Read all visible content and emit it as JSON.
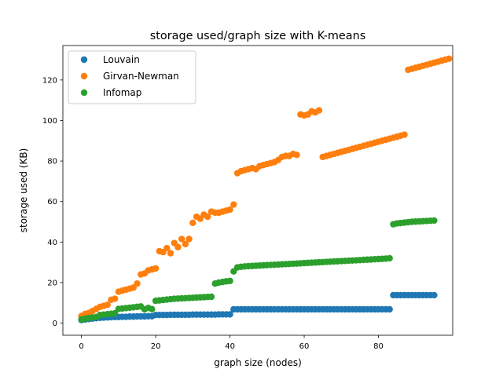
{
  "chart_data": {
    "type": "scatter",
    "title": "storage used/graph size with K-means",
    "xlabel": "graph size (nodes)",
    "ylabel": "storage used (KB)",
    "xlim": [
      -5,
      100
    ],
    "ylim": [
      -6,
      137
    ],
    "xticks": [
      0,
      20,
      40,
      60,
      80
    ],
    "yticks": [
      0,
      20,
      40,
      60,
      80,
      100,
      120
    ],
    "legend_position": "top-left",
    "series": [
      {
        "name": "Louvain",
        "color": "#1f77b4",
        "points": [
          [
            0,
            1.5
          ],
          [
            1,
            1.8
          ],
          [
            2,
            2.0
          ],
          [
            3,
            2.2
          ],
          [
            4,
            2.4
          ],
          [
            5,
            2.6
          ],
          [
            6,
            2.7
          ],
          [
            7,
            2.8
          ],
          [
            8,
            2.9
          ],
          [
            9,
            3.0
          ],
          [
            10,
            3.0
          ],
          [
            11,
            3.1
          ],
          [
            12,
            3.1
          ],
          [
            13,
            3.2
          ],
          [
            14,
            3.2
          ],
          [
            15,
            3.3
          ],
          [
            16,
            3.3
          ],
          [
            17,
            3.3
          ],
          [
            18,
            3.4
          ],
          [
            19,
            3.4
          ],
          [
            20,
            4.0
          ],
          [
            21,
            4.0
          ],
          [
            22,
            4.0
          ],
          [
            23,
            4.0
          ],
          [
            24,
            4.1
          ],
          [
            25,
            4.1
          ],
          [
            26,
            4.1
          ],
          [
            27,
            4.1
          ],
          [
            28,
            4.1
          ],
          [
            29,
            4.1
          ],
          [
            30,
            4.2
          ],
          [
            31,
            4.2
          ],
          [
            32,
            4.2
          ],
          [
            33,
            4.2
          ],
          [
            34,
            4.2
          ],
          [
            35,
            4.2
          ],
          [
            36,
            4.2
          ],
          [
            37,
            4.3
          ],
          [
            38,
            4.3
          ],
          [
            39,
            4.3
          ],
          [
            40,
            4.3
          ],
          [
            41,
            6.8
          ],
          [
            42,
            6.8
          ],
          [
            43,
            6.8
          ],
          [
            44,
            6.8
          ],
          [
            45,
            6.8
          ],
          [
            46,
            6.8
          ],
          [
            47,
            6.8
          ],
          [
            48,
            6.8
          ],
          [
            49,
            6.8
          ],
          [
            50,
            6.8
          ],
          [
            51,
            6.8
          ],
          [
            52,
            6.8
          ],
          [
            53,
            6.8
          ],
          [
            54,
            6.8
          ],
          [
            55,
            6.8
          ],
          [
            56,
            6.8
          ],
          [
            57,
            6.8
          ],
          [
            58,
            6.8
          ],
          [
            59,
            6.8
          ],
          [
            60,
            6.8
          ],
          [
            61,
            6.8
          ],
          [
            62,
            6.8
          ],
          [
            63,
            6.8
          ],
          [
            64,
            6.8
          ],
          [
            65,
            6.8
          ],
          [
            66,
            6.8
          ],
          [
            67,
            6.8
          ],
          [
            68,
            6.8
          ],
          [
            69,
            6.8
          ],
          [
            70,
            6.8
          ],
          [
            71,
            6.8
          ],
          [
            72,
            6.8
          ],
          [
            73,
            6.8
          ],
          [
            74,
            6.8
          ],
          [
            75,
            6.8
          ],
          [
            76,
            6.8
          ],
          [
            77,
            6.8
          ],
          [
            78,
            6.8
          ],
          [
            79,
            6.8
          ],
          [
            80,
            6.8
          ],
          [
            81,
            6.8
          ],
          [
            82,
            6.8
          ],
          [
            83,
            6.8
          ],
          [
            84,
            13.8
          ],
          [
            85,
            13.8
          ],
          [
            86,
            13.8
          ],
          [
            87,
            13.8
          ],
          [
            88,
            13.8
          ],
          [
            89,
            13.8
          ],
          [
            90,
            13.8
          ],
          [
            91,
            13.8
          ],
          [
            92,
            13.8
          ],
          [
            93,
            13.8
          ],
          [
            94,
            13.8
          ],
          [
            95,
            13.8
          ]
        ]
      },
      {
        "name": "Girvan-Newman",
        "color": "#ff7f0e",
        "points": [
          [
            0,
            3.5
          ],
          [
            1,
            4.5
          ],
          [
            2,
            5
          ],
          [
            3,
            6
          ],
          [
            4,
            7
          ],
          [
            5,
            8
          ],
          [
            6,
            8.5
          ],
          [
            7,
            9
          ],
          [
            8,
            11.5
          ],
          [
            9,
            12
          ],
          [
            10,
            15.5
          ],
          [
            11,
            16
          ],
          [
            12,
            16.5
          ],
          [
            13,
            17
          ],
          [
            14,
            17.5
          ],
          [
            15,
            19.5
          ],
          [
            16,
            24
          ],
          [
            17,
            24.5
          ],
          [
            18,
            26
          ],
          [
            19,
            26.5
          ],
          [
            20,
            27
          ],
          [
            21,
            35.5
          ],
          [
            22,
            35
          ],
          [
            23,
            37
          ],
          [
            24,
            34.5
          ],
          [
            25,
            39.5
          ],
          [
            26,
            37.5
          ],
          [
            27,
            41.5
          ],
          [
            28,
            39
          ],
          [
            29,
            41.5
          ],
          [
            30,
            49.5
          ],
          [
            31,
            52.5
          ],
          [
            32,
            51.5
          ],
          [
            33,
            53.5
          ],
          [
            34,
            52.5
          ],
          [
            35,
            55
          ],
          [
            36,
            54.5
          ],
          [
            37,
            54.5
          ],
          [
            38,
            55
          ],
          [
            39,
            55.5
          ],
          [
            40,
            56
          ],
          [
            41,
            58.5
          ],
          [
            42,
            74
          ],
          [
            43,
            75
          ],
          [
            44,
            75.5
          ],
          [
            45,
            76
          ],
          [
            46,
            76.5
          ],
          [
            47,
            76
          ],
          [
            48,
            77.5
          ],
          [
            49,
            78
          ],
          [
            50,
            78.5
          ],
          [
            51,
            79
          ],
          [
            52,
            79.5
          ],
          [
            53,
            80.5
          ],
          [
            54,
            82
          ],
          [
            55,
            82.5
          ],
          [
            56,
            82.5
          ],
          [
            57,
            83.5
          ],
          [
            58,
            83
          ],
          [
            59,
            103
          ],
          [
            60,
            102.5
          ],
          [
            61,
            103
          ],
          [
            62,
            104.5
          ],
          [
            63,
            104
          ],
          [
            64,
            105
          ],
          [
            65,
            82
          ],
          [
            66,
            82.5
          ],
          [
            67,
            83
          ],
          [
            68,
            83.5
          ],
          [
            69,
            84
          ],
          [
            70,
            84.5
          ],
          [
            71,
            85
          ],
          [
            72,
            85.5
          ],
          [
            73,
            86
          ],
          [
            74,
            86.5
          ],
          [
            75,
            87
          ],
          [
            76,
            87.5
          ],
          [
            77,
            88
          ],
          [
            78,
            88.5
          ],
          [
            79,
            89
          ],
          [
            80,
            89.5
          ],
          [
            81,
            90
          ],
          [
            82,
            90.5
          ],
          [
            83,
            91
          ],
          [
            84,
            91.5
          ],
          [
            85,
            92
          ],
          [
            86,
            92.5
          ],
          [
            87,
            93
          ],
          [
            88,
            125
          ],
          [
            89,
            125.5
          ],
          [
            90,
            126
          ],
          [
            91,
            126.5
          ],
          [
            92,
            127
          ],
          [
            93,
            127.5
          ],
          [
            94,
            128
          ],
          [
            95,
            128.5
          ],
          [
            96,
            129
          ],
          [
            97,
            129.5
          ],
          [
            98,
            130
          ],
          [
            99,
            130.5
          ]
        ]
      },
      {
        "name": "Infomap",
        "color": "#2ca02c",
        "points": [
          [
            0,
            1.8
          ],
          [
            1,
            2.2
          ],
          [
            2,
            2.5
          ],
          [
            3,
            2.8
          ],
          [
            4,
            3.0
          ],
          [
            5,
            4.0
          ],
          [
            6,
            4.2
          ],
          [
            7,
            4.4
          ],
          [
            8,
            4.6
          ],
          [
            9,
            4.8
          ],
          [
            10,
            7.0
          ],
          [
            11,
            7.2
          ],
          [
            12,
            7.4
          ],
          [
            13,
            7.6
          ],
          [
            14,
            7.8
          ],
          [
            15,
            8.0
          ],
          [
            16,
            8.2
          ],
          [
            17,
            6.8
          ],
          [
            18,
            7.5
          ],
          [
            19,
            6.9
          ],
          [
            20,
            11.0
          ],
          [
            21,
            11.2
          ],
          [
            22,
            11.4
          ],
          [
            23,
            11.6
          ],
          [
            24,
            11.8
          ],
          [
            25,
            12.0
          ],
          [
            26,
            12.1
          ],
          [
            27,
            12.2
          ],
          [
            28,
            12.3
          ],
          [
            29,
            12.4
          ],
          [
            30,
            12.5
          ],
          [
            31,
            12.6
          ],
          [
            32,
            12.7
          ],
          [
            33,
            12.8
          ],
          [
            34,
            12.9
          ],
          [
            35,
            13.0
          ],
          [
            36,
            19.5
          ],
          [
            37,
            20.0
          ],
          [
            38,
            20.3
          ],
          [
            39,
            20.6
          ],
          [
            40,
            20.8
          ],
          [
            41,
            25.5
          ],
          [
            42,
            27.5
          ],
          [
            43,
            27.8
          ],
          [
            44,
            28.0
          ],
          [
            45,
            28.1
          ],
          [
            46,
            28.2
          ],
          [
            47,
            28.3
          ],
          [
            48,
            28.4
          ],
          [
            49,
            28.5
          ],
          [
            50,
            28.6
          ],
          [
            51,
            28.7
          ],
          [
            52,
            28.8
          ],
          [
            53,
            28.9
          ],
          [
            54,
            29.0
          ],
          [
            55,
            29.1
          ],
          [
            56,
            29.2
          ],
          [
            57,
            29.3
          ],
          [
            58,
            29.4
          ],
          [
            59,
            29.5
          ],
          [
            60,
            29.6
          ],
          [
            61,
            29.7
          ],
          [
            62,
            29.8
          ],
          [
            63,
            29.9
          ],
          [
            64,
            30.0
          ],
          [
            65,
            30.1
          ],
          [
            66,
            30.2
          ],
          [
            67,
            30.3
          ],
          [
            68,
            30.4
          ],
          [
            69,
            30.5
          ],
          [
            70,
            30.6
          ],
          [
            71,
            30.7
          ],
          [
            72,
            30.8
          ],
          [
            73,
            30.9
          ],
          [
            74,
            31.0
          ],
          [
            75,
            31.1
          ],
          [
            76,
            31.2
          ],
          [
            77,
            31.3
          ],
          [
            78,
            31.4
          ],
          [
            79,
            31.5
          ],
          [
            80,
            31.6
          ],
          [
            81,
            31.7
          ],
          [
            82,
            31.8
          ],
          [
            83,
            32.0
          ],
          [
            84,
            48.8
          ],
          [
            85,
            49.2
          ],
          [
            86,
            49.4
          ],
          [
            87,
            49.6
          ],
          [
            88,
            49.8
          ],
          [
            89,
            50.0
          ],
          [
            90,
            50.1
          ],
          [
            91,
            50.2
          ],
          [
            92,
            50.3
          ],
          [
            93,
            50.4
          ],
          [
            94,
            50.5
          ],
          [
            95,
            50.6
          ]
        ]
      }
    ]
  }
}
